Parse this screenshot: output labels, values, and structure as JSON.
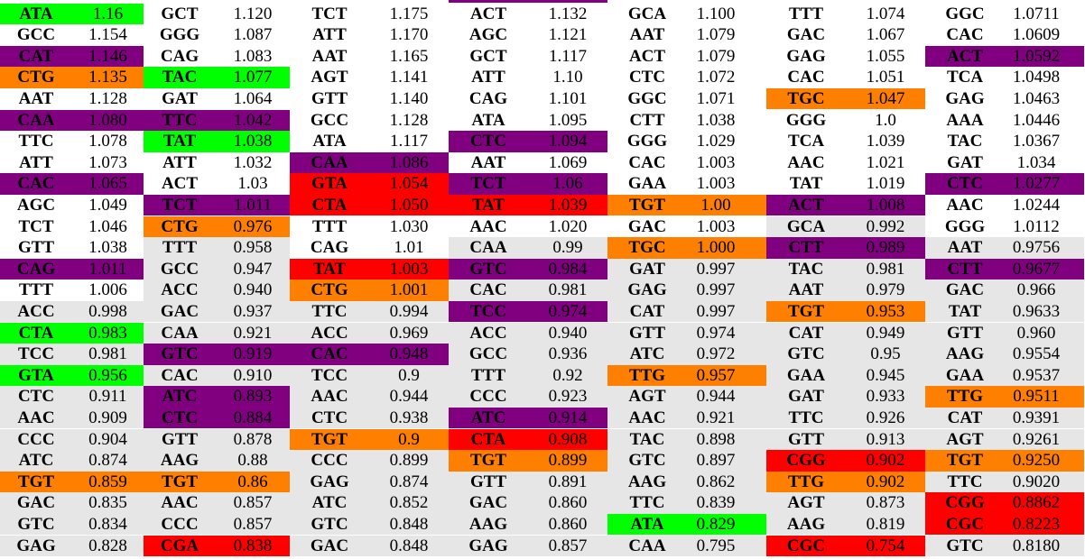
{
  "colors": {
    "g": "#00ff00",
    "p": "#800080",
    "o": "#ff8000",
    "r": "#ff0000",
    "l": "#e6e6e6",
    "w": "#ffffff"
  },
  "columns": [
    [
      [
        "ATA",
        "1.16",
        "g"
      ],
      [
        "GCC",
        "1.154",
        "w"
      ],
      [
        "CAT",
        "1.146",
        "p"
      ],
      [
        "CTG",
        "1.135",
        "o"
      ],
      [
        "AAT",
        "1.128",
        "w"
      ],
      [
        "CAA",
        "1.080",
        "p"
      ],
      [
        "TTC",
        "1.078",
        "w"
      ],
      [
        "ATT",
        "1.073",
        "w"
      ],
      [
        "CAC",
        "1.065",
        "p"
      ],
      [
        "AGC",
        "1.049",
        "w"
      ],
      [
        "TCT",
        "1.046",
        "w"
      ],
      [
        "GTT",
        "1.038",
        "w"
      ],
      [
        "CAG",
        "1.011",
        "p"
      ],
      [
        "TTT",
        "1.006",
        "w"
      ],
      [
        "ACC",
        "0.998",
        "l"
      ],
      [
        "CTA",
        "0.983",
        "g"
      ],
      [
        "TCC",
        "0.981",
        "l"
      ],
      [
        "GTA",
        "0.956",
        "g"
      ],
      [
        "CTC",
        "0.911",
        "l"
      ],
      [
        "AAC",
        "0.909",
        "l"
      ],
      [
        "CCC",
        "0.904",
        "l"
      ],
      [
        "ATC",
        "0.874",
        "l"
      ],
      [
        "TGT",
        "0.859",
        "o"
      ],
      [
        "GAC",
        "0.835",
        "l"
      ],
      [
        "GTC",
        "0.834",
        "l"
      ],
      [
        "GAG",
        "0.828",
        "l"
      ]
    ],
    [
      [
        "GCT",
        "1.120",
        "w"
      ],
      [
        "GGG",
        "1.087",
        "w"
      ],
      [
        "CAG",
        "1.083",
        "w"
      ],
      [
        "TAC",
        "1.077",
        "g"
      ],
      [
        "GAT",
        "1.064",
        "w"
      ],
      [
        "TTC",
        "1.042",
        "p"
      ],
      [
        "TAT",
        "1.038",
        "g"
      ],
      [
        "ATT",
        "1.032",
        "w"
      ],
      [
        "ACT",
        "1.03",
        "w"
      ],
      [
        "TCT",
        "1.011",
        "p"
      ],
      [
        "CTG",
        "0.976",
        "o"
      ],
      [
        "TTT",
        "0.958",
        "l"
      ],
      [
        "GCC",
        "0.947",
        "l"
      ],
      [
        "ACC",
        "0.940",
        "l"
      ],
      [
        "GAC",
        "0.937",
        "l"
      ],
      [
        "CAA",
        "0.921",
        "l"
      ],
      [
        "GTC",
        "0.919",
        "p"
      ],
      [
        "CAC",
        "0.910",
        "l"
      ],
      [
        "ATC",
        "0.893",
        "p"
      ],
      [
        "CTC",
        "0.884",
        "p"
      ],
      [
        "GTT",
        "0.878",
        "l"
      ],
      [
        "AAG",
        "0.88",
        "l"
      ],
      [
        "TGT",
        "0.86",
        "o"
      ],
      [
        "AAC",
        "0.857",
        "l"
      ],
      [
        "CCC",
        "0.857",
        "l"
      ],
      [
        "CGA",
        "0.838",
        "r"
      ]
    ],
    [
      [
        "TCT",
        "1.175",
        "w"
      ],
      [
        "ATT",
        "1.170",
        "w"
      ],
      [
        "AAT",
        "1.165",
        "w"
      ],
      [
        "AGT",
        "1.141",
        "w"
      ],
      [
        "GTT",
        "1.140",
        "w"
      ],
      [
        "GCC",
        "1.128",
        "w"
      ],
      [
        "ATA",
        "1.117",
        "w"
      ],
      [
        "CAA",
        "1.086",
        "p"
      ],
      [
        "GTA",
        "1.054",
        "r"
      ],
      [
        "CTA",
        "1.050",
        "r"
      ],
      [
        "TTT",
        "1.030",
        "w"
      ],
      [
        "CAG",
        "1.01",
        "w"
      ],
      [
        "TAT",
        "1.003",
        "r"
      ],
      [
        "CTG",
        "1.001",
        "o"
      ],
      [
        "TTC",
        "0.994",
        "l"
      ],
      [
        "ACC",
        "0.969",
        "l"
      ],
      [
        "CAC",
        "0.948",
        "p"
      ],
      [
        "TCC",
        "0.9",
        "l"
      ],
      [
        "AAC",
        "0.944",
        "l"
      ],
      [
        "CTC",
        "0.938",
        "l"
      ],
      [
        "TGT",
        "0.9",
        "o"
      ],
      [
        "CCC",
        "0.899",
        "l"
      ],
      [
        "GAG",
        "0.874",
        "l"
      ],
      [
        "ATC",
        "0.852",
        "l"
      ],
      [
        "GTC",
        "0.848",
        "l"
      ],
      [
        "GAC",
        "0.848",
        "l"
      ]
    ],
    [
      [
        "ACT",
        "1.132",
        "w"
      ],
      [
        "AGC",
        "1.121",
        "w"
      ],
      [
        "GCT",
        "1.117",
        "w"
      ],
      [
        "ATT",
        "1.10",
        "w"
      ],
      [
        "CAG",
        "1.101",
        "w"
      ],
      [
        "ATA",
        "1.095",
        "w"
      ],
      [
        "CTC",
        "1.094",
        "p"
      ],
      [
        "AAT",
        "1.069",
        "w"
      ],
      [
        "TCT",
        "1.06",
        "p"
      ],
      [
        "TAT",
        "1.039",
        "r"
      ],
      [
        "AAC",
        "1.020",
        "w"
      ],
      [
        "CAA",
        "0.99",
        "l"
      ],
      [
        "GTC",
        "0.984",
        "p"
      ],
      [
        "CAC",
        "0.981",
        "l"
      ],
      [
        "TCC",
        "0.974",
        "p"
      ],
      [
        "ACC",
        "0.940",
        "l"
      ],
      [
        "GCC",
        "0.936",
        "l"
      ],
      [
        "TTT",
        "0.92",
        "l"
      ],
      [
        "CCC",
        "0.923",
        "l"
      ],
      [
        "ATC",
        "0.914",
        "p"
      ],
      [
        "CTA",
        "0.908",
        "r"
      ],
      [
        "TGT",
        "0.899",
        "o"
      ],
      [
        "GTT",
        "0.891",
        "l"
      ],
      [
        "GAC",
        "0.860",
        "l"
      ],
      [
        "AAG",
        "0.860",
        "l"
      ],
      [
        "GAG",
        "0.857",
        "l"
      ]
    ],
    [
      [
        "GCA",
        "1.100",
        "w"
      ],
      [
        "AAT",
        "1.079",
        "w"
      ],
      [
        "ACT",
        "1.079",
        "w"
      ],
      [
        "CTC",
        "1.072",
        "w"
      ],
      [
        "GGC",
        "1.071",
        "w"
      ],
      [
        "CTT",
        "1.038",
        "w"
      ],
      [
        "GGG",
        "1.029",
        "w"
      ],
      [
        "CAC",
        "1.003",
        "w"
      ],
      [
        "GAA",
        "1.003",
        "w"
      ],
      [
        "TGT",
        "1.00",
        "o"
      ],
      [
        "GAC",
        "1.003",
        "w"
      ],
      [
        "TGC",
        "1.000",
        "o"
      ],
      [
        "GAT",
        "0.997",
        "l"
      ],
      [
        "GAG",
        "0.997",
        "l"
      ],
      [
        "CAT",
        "0.997",
        "l"
      ],
      [
        "GTT",
        "0.974",
        "l"
      ],
      [
        "ATC",
        "0.972",
        "l"
      ],
      [
        "TTG",
        "0.957",
        "o"
      ],
      [
        "AGT",
        "0.944",
        "l"
      ],
      [
        "AAC",
        "0.921",
        "l"
      ],
      [
        "TAC",
        "0.898",
        "l"
      ],
      [
        "GTC",
        "0.897",
        "l"
      ],
      [
        "AAG",
        "0.862",
        "l"
      ],
      [
        "TTC",
        "0.839",
        "l"
      ],
      [
        "ATA",
        "0.829",
        "g"
      ],
      [
        "CAA",
        "0.795",
        "l"
      ]
    ],
    [
      [
        "TTT",
        "1.074",
        "w"
      ],
      [
        "GAC",
        "1.067",
        "w"
      ],
      [
        "GAG",
        "1.055",
        "w"
      ],
      [
        "CAC",
        "1.051",
        "w"
      ],
      [
        "TGC",
        "1.047",
        "o"
      ],
      [
        "GGG",
        "1.0",
        "w"
      ],
      [
        "TCA",
        "1.039",
        "w"
      ],
      [
        "AAC",
        "1.021",
        "w"
      ],
      [
        "TAT",
        "1.019",
        "w"
      ],
      [
        "ACT",
        "1.008",
        "p"
      ],
      [
        "GCA",
        "0.992",
        "l"
      ],
      [
        "CTT",
        "0.989",
        "p"
      ],
      [
        "TAC",
        "0.981",
        "l"
      ],
      [
        "AAT",
        "0.979",
        "l"
      ],
      [
        "TGT",
        "0.953",
        "o"
      ],
      [
        "CAT",
        "0.949",
        "l"
      ],
      [
        "GTC",
        "0.95",
        "l"
      ],
      [
        "GAA",
        "0.945",
        "l"
      ],
      [
        "GAT",
        "0.933",
        "l"
      ],
      [
        "TTC",
        "0.926",
        "l"
      ],
      [
        "GTT",
        "0.913",
        "l"
      ],
      [
        "CGG",
        "0.902",
        "r"
      ],
      [
        "TTG",
        "0.902",
        "o"
      ],
      [
        "AGT",
        "0.873",
        "l"
      ],
      [
        "AAG",
        "0.819",
        "l"
      ],
      [
        "CGC",
        "0.754",
        "r"
      ]
    ],
    [
      [
        "GGC",
        "1.0711",
        "w"
      ],
      [
        "CAC",
        "1.0609",
        "w"
      ],
      [
        "ACT",
        "1.0592",
        "p"
      ],
      [
        "TCA",
        "1.0498",
        "w"
      ],
      [
        "GAG",
        "1.0463",
        "w"
      ],
      [
        "AAA",
        "1.0446",
        "w"
      ],
      [
        "TAC",
        "1.0367",
        "w"
      ],
      [
        "GAT",
        "1.034",
        "w"
      ],
      [
        "CTC",
        "1.0277",
        "p"
      ],
      [
        "AAC",
        "1.0244",
        "w"
      ],
      [
        "GGG",
        "1.0112",
        "w"
      ],
      [
        "AAT",
        "0.9756",
        "l"
      ],
      [
        "CTT",
        "0.9677",
        "p"
      ],
      [
        "GAC",
        "0.966",
        "l"
      ],
      [
        "TAT",
        "0.9633",
        "l"
      ],
      [
        "GTT",
        "0.960",
        "l"
      ],
      [
        "AAG",
        "0.9554",
        "l"
      ],
      [
        "GAA",
        "0.9537",
        "l"
      ],
      [
        "TTG",
        "0.9511",
        "o"
      ],
      [
        "CAT",
        "0.9391",
        "l"
      ],
      [
        "AGT",
        "0.9261",
        "l"
      ],
      [
        "TGT",
        "0.9250",
        "o"
      ],
      [
        "TTC",
        "0.9020",
        "l"
      ],
      [
        "CGG",
        "0.8862",
        "r"
      ],
      [
        "CGC",
        "0.8223",
        "r"
      ],
      [
        "GTC",
        "0.8180",
        "l"
      ]
    ]
  ]
}
